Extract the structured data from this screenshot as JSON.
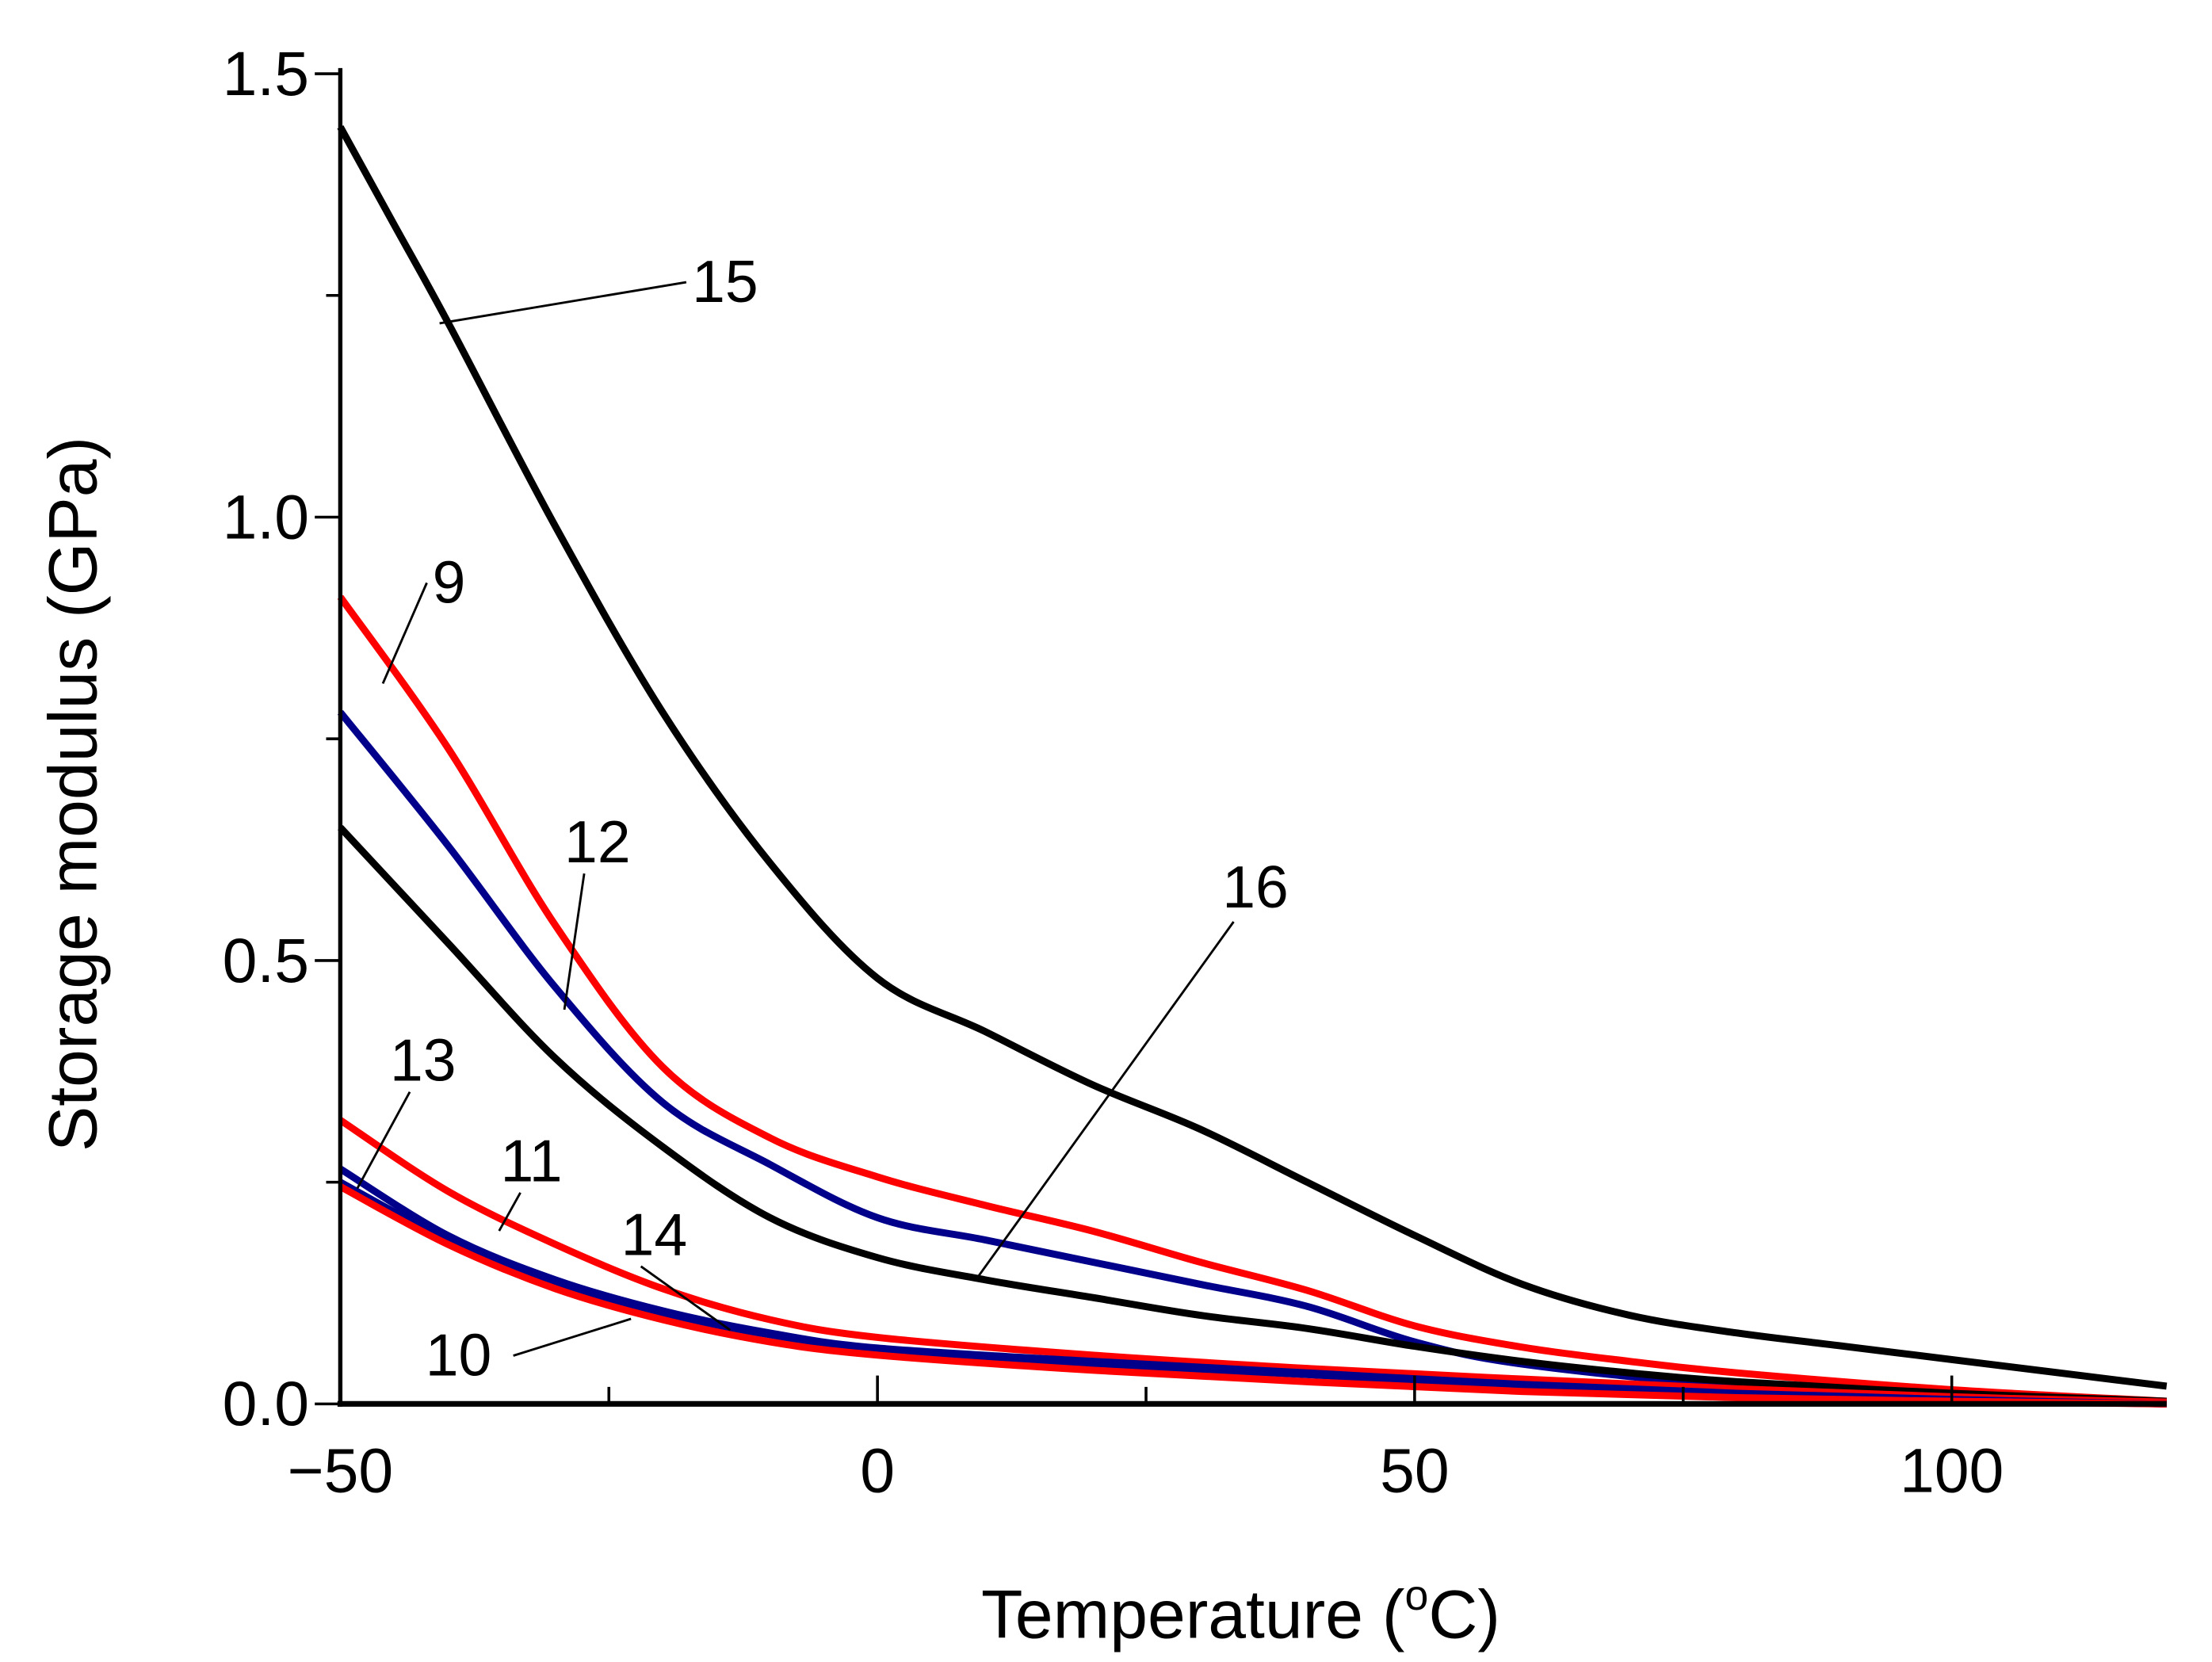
{
  "chart_data": {
    "type": "line",
    "title": "",
    "xlabel": "Temperature (",
    "xlabel_sup": "o",
    "xlabel_tail": "C)",
    "ylabel": "Storage modulus (GPa)",
    "xlim": [
      -50,
      120
    ],
    "ylim": [
      0,
      1.5
    ],
    "xticks": [
      -50,
      0,
      50,
      100
    ],
    "xtick_labels": [
      "−50",
      "0",
      "50",
      "100"
    ],
    "yticks": [
      0,
      0.5,
      1.0,
      1.5
    ],
    "ytick_labels": [
      "0.0",
      "0.5",
      "1.0",
      "1.5"
    ],
    "grid": false,
    "colors": {
      "red": "#ff0000",
      "blue": "#00008b",
      "black": "#000000"
    },
    "series": [
      {
        "name": "15",
        "color": "#000000",
        "x": [
          -50,
          -45,
          -40,
          -30,
          -20,
          -10,
          0,
          10,
          20,
          30,
          40,
          50,
          60,
          70,
          80,
          90,
          100,
          110,
          120
        ],
        "y": [
          1.44,
          1.33,
          1.22,
          0.99,
          0.78,
          0.61,
          0.48,
          0.42,
          0.36,
          0.31,
          0.25,
          0.19,
          0.135,
          0.1,
          0.08,
          0.065,
          0.05,
          0.035,
          0.02
        ]
      },
      {
        "name": "9",
        "color": "#ff0000",
        "x": [
          -50,
          -40,
          -30,
          -20,
          -10,
          0,
          10,
          20,
          30,
          40,
          50,
          60,
          70,
          80,
          100,
          120
        ],
        "y": [
          0.91,
          0.74,
          0.54,
          0.38,
          0.3,
          0.256,
          0.224,
          0.195,
          0.16,
          0.128,
          0.088,
          0.064,
          0.048,
          0.035,
          0.016,
          0.003
        ]
      },
      {
        "name": "12",
        "color": "#00008b",
        "x": [
          -50,
          -40,
          -30,
          -20,
          -10,
          0,
          10,
          20,
          30,
          40,
          50,
          60,
          80,
          100,
          120
        ],
        "y": [
          0.78,
          0.63,
          0.47,
          0.34,
          0.27,
          0.21,
          0.185,
          0.16,
          0.135,
          0.11,
          0.07,
          0.045,
          0.02,
          0.008,
          0.0
        ]
      },
      {
        "name": "16",
        "color": "#000000",
        "x": [
          -50,
          -40,
          -30,
          -20,
          -10,
          0,
          10,
          20,
          30,
          40,
          50,
          60,
          70,
          80,
          100,
          120
        ],
        "y": [
          0.65,
          0.52,
          0.39,
          0.29,
          0.21,
          0.165,
          0.14,
          0.12,
          0.1,
          0.085,
          0.065,
          0.048,
          0.035,
          0.025,
          0.012,
          0.003
        ]
      },
      {
        "name": "11",
        "color": "#ff0000",
        "x": [
          -50,
          -40,
          -30,
          -20,
          -10,
          0,
          20,
          40,
          60,
          80,
          100,
          120
        ],
        "y": [
          0.32,
          0.24,
          0.18,
          0.13,
          0.095,
          0.075,
          0.055,
          0.04,
          0.028,
          0.017,
          0.008,
          0.002
        ]
      },
      {
        "name": "13",
        "color": "#00008b",
        "x": [
          -50,
          -40,
          -30,
          -20,
          -10,
          0,
          20,
          40,
          60,
          80,
          100,
          120
        ],
        "y": [
          0.265,
          0.19,
          0.14,
          0.105,
          0.08,
          0.063,
          0.048,
          0.035,
          0.022,
          0.012,
          0.005,
          0.0
        ]
      },
      {
        "name": "14",
        "color": "#00008b",
        "x": [
          -50,
          -40,
          -30,
          -20,
          -10,
          0,
          20,
          40,
          60,
          80,
          100,
          120
        ],
        "y": [
          0.25,
          0.185,
          0.135,
          0.1,
          0.078,
          0.06,
          0.045,
          0.033,
          0.02,
          0.01,
          0.004,
          0.0
        ]
      },
      {
        "name": "10",
        "color": "#ff0000",
        "x": [
          -50,
          -40,
          -30,
          -20,
          -10,
          0,
          20,
          40,
          60,
          80,
          100,
          120
        ],
        "y": [
          0.245,
          0.18,
          0.13,
          0.095,
          0.07,
          0.055,
          0.038,
          0.025,
          0.014,
          0.007,
          0.003,
          0.0
        ]
      }
    ]
  }
}
